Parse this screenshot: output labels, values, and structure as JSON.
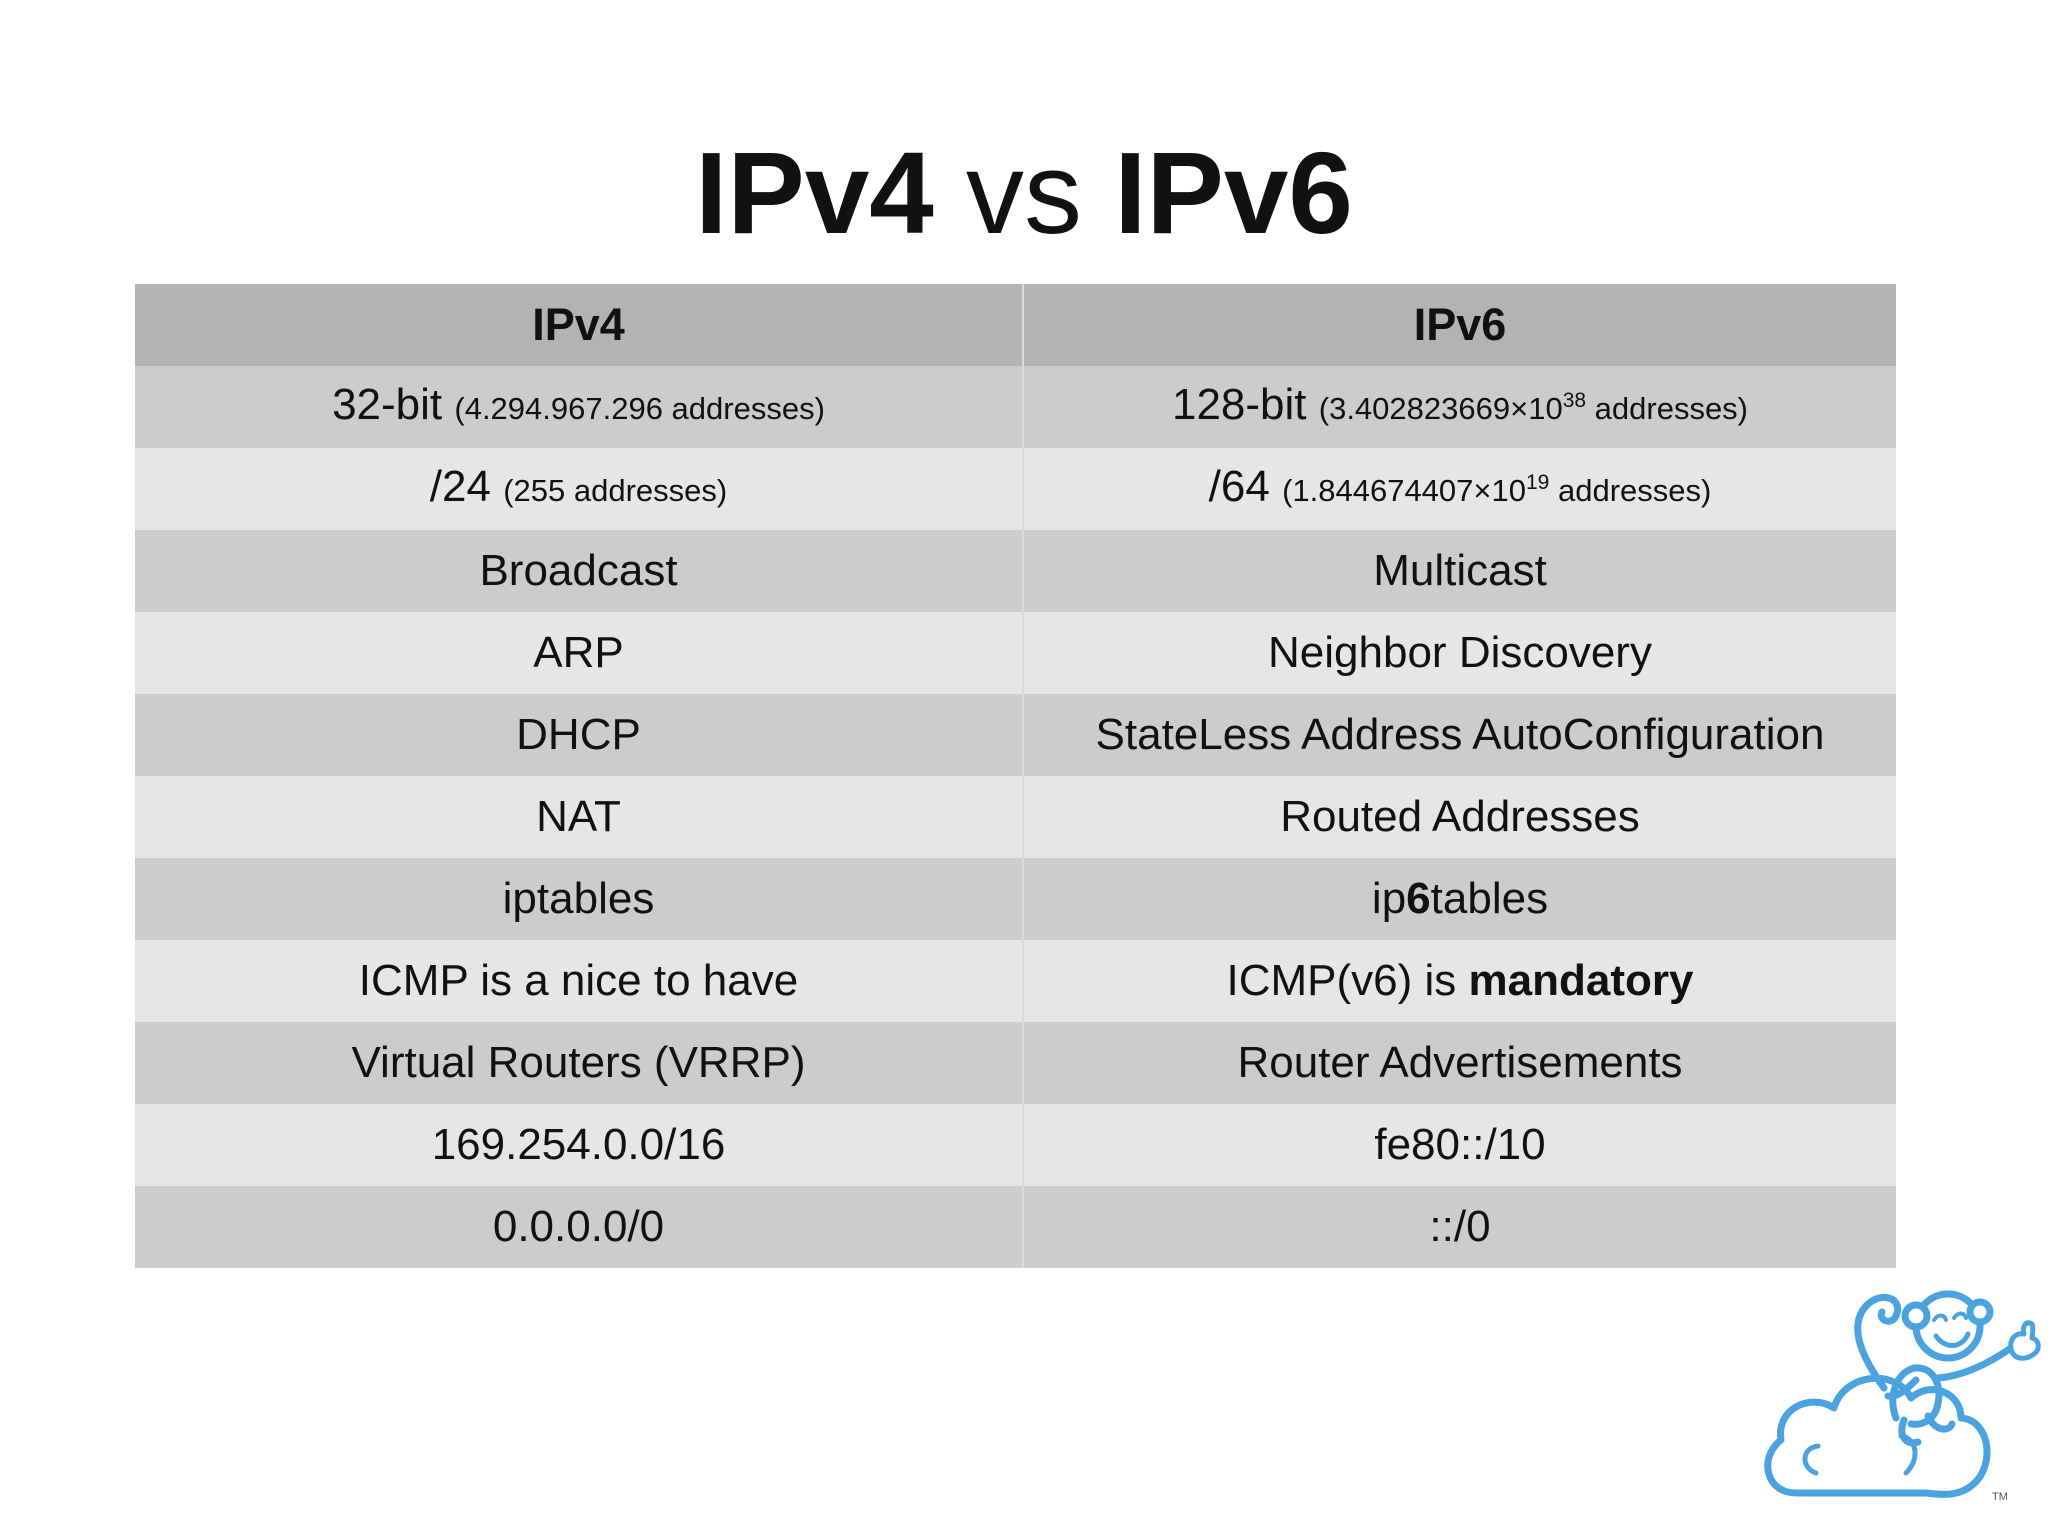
{
  "title": {
    "left": "IPv4",
    "middle": "vs",
    "right": "IPv6"
  },
  "table": {
    "headers": [
      "IPv4",
      "IPv6"
    ],
    "rows": [
      {
        "ipv4": {
          "main": "32-bit",
          "note_pre": "(4.294.967.296 addresses)",
          "note_sup": "",
          "note_post": ""
        },
        "ipv6": {
          "main": "128-bit",
          "note_pre": "(3.402823669×10",
          "note_sup": "38",
          "note_post": " addresses)"
        }
      },
      {
        "ipv4": {
          "main": "/24",
          "note_pre": "(255 addresses)",
          "note_sup": "",
          "note_post": ""
        },
        "ipv6": {
          "main": "/64",
          "note_pre": "(1.844674407×10",
          "note_sup": "19",
          "note_post": " addresses)"
        }
      },
      {
        "ipv4": "Broadcast",
        "ipv6": "Multicast"
      },
      {
        "ipv4": "ARP",
        "ipv6": "Neighbor Discovery"
      },
      {
        "ipv4": "DHCP",
        "ipv6": "StateLess Address AutoConfiguration"
      },
      {
        "ipv4": "NAT",
        "ipv6": "Routed Addresses"
      },
      {
        "ipv4": "iptables",
        "ipv6": {
          "pre": "ip",
          "bold": "6",
          "post": "tables"
        }
      },
      {
        "ipv4": "ICMP is a nice to have",
        "ipv6": {
          "pre": "ICMP(v6) is ",
          "bold": "mandatory",
          "post": ""
        }
      },
      {
        "ipv4": "Virtual Routers (VRRP)",
        "ipv6": "Router Advertisements"
      },
      {
        "ipv4": "169.254.0.0/16",
        "ipv6": "fe80::/10"
      },
      {
        "ipv4": "0.0.0.0/0",
        "ipv6": "::/0"
      }
    ]
  },
  "logo": {
    "icon": "cloud-monkey-mascot-icon",
    "trademark": "TM",
    "color": "#4aa3df"
  },
  "colors": {
    "header_row": "#b3b3b3",
    "dark_row": "#cccccc",
    "light_row": "#e6e6e6",
    "text": "#111111"
  }
}
